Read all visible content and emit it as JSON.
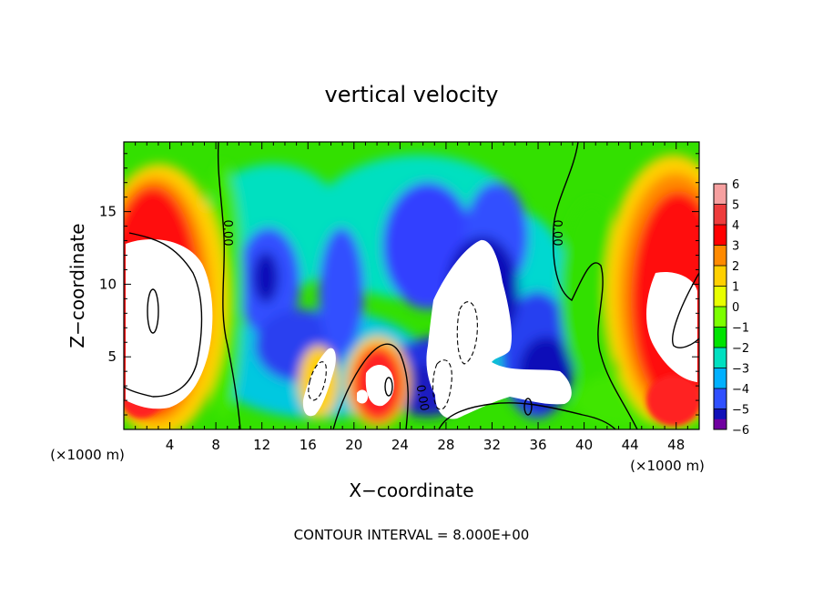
{
  "chart_data": {
    "type": "heatmap",
    "title": "vertical velocity",
    "xlabel": "X−coordinate",
    "ylabel": "Z−coordinate",
    "x_unit_left": "(×1000 m)",
    "x_unit_right": "(×1000 m)",
    "footer": "CONTOUR INTERVAL = 8.000E+00",
    "xlim": [
      0,
      50
    ],
    "ylim": [
      0,
      19.8
    ],
    "x_ticks": [
      4,
      8,
      12,
      16,
      20,
      24,
      28,
      32,
      36,
      40,
      44,
      48
    ],
    "y_ticks": [
      5,
      10,
      15
    ],
    "colorbar": {
      "levels": [
        "6",
        "5",
        "4",
        "3",
        "2",
        "1",
        "0",
        "−1",
        "−2",
        "−3",
        "−4",
        "−5",
        "−6"
      ],
      "colors": [
        "#f6a0a0",
        "#ee3c3c",
        "#ff0000",
        "#ff8a00",
        "#ffd000",
        "#e8ff00",
        "#7cff00",
        "#00e400",
        "#00e0c0",
        "#00b0ff",
        "#3050ff",
        "#1010b8",
        "#7000a0"
      ]
    },
    "contour_labels": [
      {
        "x": 6.6,
        "z": 13.6,
        "text": "0.00"
      },
      {
        "x": 37.1,
        "z": 13.6,
        "text": "0.00"
      },
      {
        "x": 25.8,
        "z": 2.4,
        "text": "0.00"
      }
    ]
  }
}
